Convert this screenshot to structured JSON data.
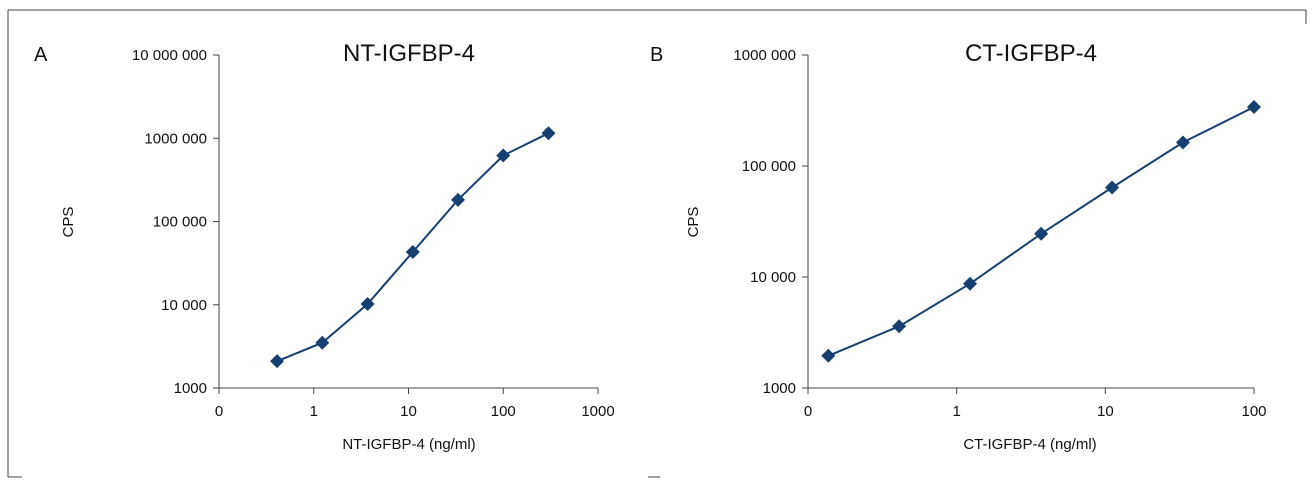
{
  "chart_data": [
    {
      "type": "line",
      "panel_label": "A",
      "title": "NT-IGFBP-4",
      "xlabel": "NT-IGFBP-4 (ng/ml)",
      "ylabel": "CPS",
      "x_scale": "log",
      "y_scale": "log",
      "xlim": [
        0.1,
        1000
      ],
      "ylim": [
        1000,
        10000000
      ],
      "x_ticks": [
        {
          "value": 0.1,
          "label": "0"
        },
        {
          "value": 1,
          "label": "1"
        },
        {
          "value": 10,
          "label": "10"
        },
        {
          "value": 100,
          "label": "100"
        },
        {
          "value": 1000,
          "label": "1000"
        }
      ],
      "y_ticks": [
        {
          "value": 1000,
          "label": "1000"
        },
        {
          "value": 10000,
          "label": "10 000"
        },
        {
          "value": 100000,
          "label": "100 000"
        },
        {
          "value": 1000000,
          "label": "1000  000"
        },
        {
          "value": 10000000,
          "label": "10 000 000"
        }
      ],
      "grid": false,
      "legend": "none",
      "marker": "diamond",
      "color": "#163f72",
      "series": [
        {
          "x": [
            0.41,
            1.23,
            3.7,
            11.1,
            33.3,
            100,
            300
          ],
          "y": [
            2100,
            3500,
            10200,
            43000,
            182000,
            620000,
            1150000
          ]
        }
      ]
    },
    {
      "type": "line",
      "panel_label": "B",
      "title": "CT-IGFBP-4",
      "xlabel": "CT-IGFBP-4 (ng/ml)",
      "ylabel": "CPS",
      "x_scale": "log",
      "y_scale": "log",
      "xlim": [
        0.1,
        100
      ],
      "ylim": [
        1000,
        1000000
      ],
      "x_ticks": [
        {
          "value": 0.1,
          "label": "0"
        },
        {
          "value": 1,
          "label": "1"
        },
        {
          "value": 10,
          "label": "10"
        },
        {
          "value": 100,
          "label": "100"
        }
      ],
      "y_ticks": [
        {
          "value": 1000,
          "label": "1000"
        },
        {
          "value": 10000,
          "label": "10 000"
        },
        {
          "value": 100000,
          "label": "100 000"
        },
        {
          "value": 1000000,
          "label": "1000 000"
        }
      ],
      "grid": false,
      "legend": "none",
      "marker": "diamond",
      "color": "#163f72",
      "series": [
        {
          "x": [
            0.137,
            0.41,
            1.23,
            3.7,
            11.1,
            33.3,
            100
          ],
          "y": [
            1950,
            3600,
            8700,
            24500,
            64000,
            163000,
            340000
          ]
        }
      ]
    }
  ]
}
